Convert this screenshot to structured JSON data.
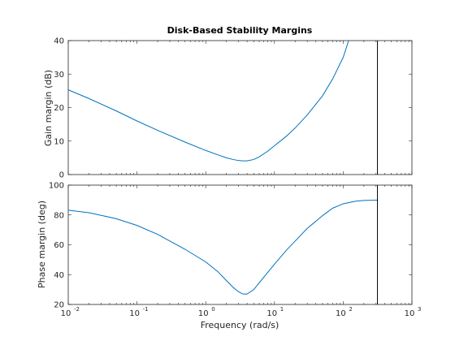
{
  "chart_data": [
    {
      "type": "line",
      "title": "Disk-Based Stability Margins",
      "ylabel": "Gain margin (dB)",
      "xscale": "log",
      "xlim": [
        0.01,
        1000
      ],
      "ylim": [
        0,
        40
      ],
      "yticks": [
        "0",
        "10",
        "20",
        "30",
        "40"
      ],
      "marker_x": 315,
      "line_color": "#0072BD",
      "series": [
        {
          "x": [
            0.01,
            0.02,
            0.05,
            0.1,
            0.2,
            0.5,
            1,
            1.5,
            2,
            2.5,
            3,
            3.5,
            4,
            5,
            6,
            8,
            10,
            15,
            20,
            30,
            50,
            70,
            100,
            120
          ],
          "y": [
            25.3,
            22.7,
            19.0,
            16.0,
            13.2,
            9.7,
            7.2,
            5.9,
            5.0,
            4.5,
            4.2,
            4.1,
            4.1,
            4.5,
            5.3,
            7.0,
            8.6,
            11.5,
            13.9,
            17.8,
            23.5,
            28.5,
            35.0,
            40.0
          ]
        }
      ]
    },
    {
      "type": "line",
      "xlabel": "Frequency (rad/s)",
      "ylabel": "Phase margin (deg)",
      "xscale": "log",
      "xlim": [
        0.01,
        1000
      ],
      "ylim": [
        20,
        100
      ],
      "yticks": [
        "20",
        "40",
        "60",
        "80",
        "100"
      ],
      "xticks": [
        {
          "base": "10",
          "exp": "-2"
        },
        {
          "base": "10",
          "exp": "-1"
        },
        {
          "base": "10",
          "exp": "0"
        },
        {
          "base": "10",
          "exp": "1"
        },
        {
          "base": "10",
          "exp": "2"
        },
        {
          "base": "10",
          "exp": "3"
        }
      ],
      "marker_x": 315,
      "line_color": "#0072BD",
      "series": [
        {
          "x": [
            0.01,
            0.02,
            0.05,
            0.1,
            0.2,
            0.5,
            1,
            1.5,
            2,
            2.5,
            3,
            3.5,
            4,
            5,
            6,
            8,
            10,
            15,
            20,
            30,
            50,
            70,
            100,
            150,
            200,
            315
          ],
          "y": [
            83.2,
            81.5,
            77.5,
            73.0,
            67.0,
            57.0,
            48.5,
            42.0,
            36.0,
            31.5,
            28.5,
            27.0,
            27.0,
            30.0,
            34.5,
            41.5,
            47.0,
            56.5,
            62.5,
            71.0,
            79.5,
            84.5,
            87.5,
            89.2,
            89.7,
            89.9
          ]
        }
      ]
    }
  ]
}
